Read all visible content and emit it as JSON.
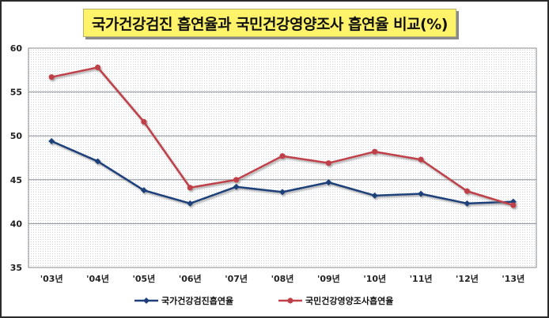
{
  "chart_data": {
    "type": "line",
    "title": "국가건강검진 흡연율과 국민건강영양조사 흡연율 비교(%)",
    "categories": [
      "'03년",
      "'04년",
      "'05년",
      "'06년",
      "'07년",
      "'08년",
      "'09년",
      "'10년",
      "'11년",
      "'12년",
      "'13년"
    ],
    "ylim": [
      35,
      60
    ],
    "yticks": [
      35,
      40,
      45,
      50,
      55,
      60
    ],
    "grid": true,
    "legend_position": "bottom",
    "series": [
      {
        "name": "국가건강검진흡연율",
        "color": "#1f3f7a",
        "marker": "diamond",
        "values": [
          49.4,
          47.1,
          43.8,
          42.3,
          44.2,
          43.6,
          44.7,
          43.2,
          43.4,
          42.3,
          42.5
        ]
      },
      {
        "name": "국민건강영양조사흡연율",
        "color": "#c0404a",
        "marker": "circle",
        "values": [
          56.7,
          57.8,
          51.6,
          44.1,
          45.0,
          47.7,
          46.9,
          48.2,
          47.3,
          43.7,
          42.1
        ]
      }
    ]
  }
}
